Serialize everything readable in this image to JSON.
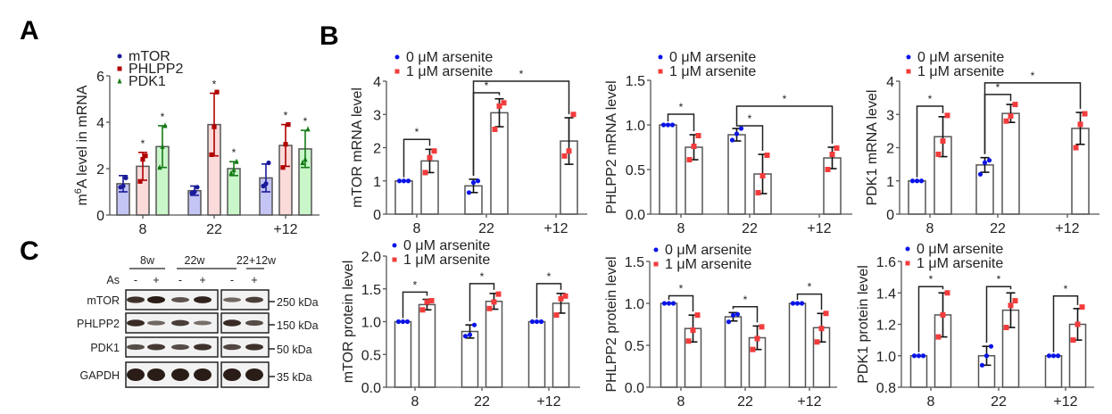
{
  "panels": {
    "A": "A",
    "B": "B",
    "C": "C"
  },
  "chart_data": [
    {
      "id": "A",
      "type": "bar",
      "title": "",
      "xlabel": "",
      "ylabel": "m6A level in mRNA",
      "ylabel_parts": {
        "pre": "m",
        "sup": "6",
        "post": "A level in mRNA"
      },
      "ylim": [
        0,
        6
      ],
      "yticks": [
        0,
        2,
        4,
        6
      ],
      "categories": [
        "8",
        "22",
        "+12"
      ],
      "legend_position": "top-left",
      "series": [
        {
          "name": "mTOR",
          "color": "#1a1a9a",
          "fill": "#c4c4f5",
          "marker": "circle",
          "values": [
            1.35,
            1.05,
            1.6
          ],
          "sd": [
            0.35,
            0.2,
            0.6
          ],
          "points": [
            [
              1.2,
              1.25,
              1.6
            ],
            [
              0.95,
              1.0,
              1.2
            ],
            [
              1.25,
              1.35,
              2.25
            ]
          ],
          "significant": [
            false,
            false,
            false
          ]
        },
        {
          "name": "PHLPP2",
          "color": "#b00000",
          "fill": "#fbdada",
          "marker": "square",
          "values": [
            2.1,
            3.9,
            3.0
          ],
          "sd": [
            0.6,
            1.35,
            0.9
          ],
          "points": [
            [
              1.45,
              2.4,
              2.55
            ],
            [
              2.6,
              3.8,
              5.3
            ],
            [
              2.05,
              3.05,
              3.9
            ]
          ],
          "significant": [
            true,
            true,
            true
          ]
        },
        {
          "name": "PDK1",
          "color": "#167a16",
          "fill": "#caf7ca",
          "marker": "triangle",
          "values": [
            2.95,
            2.0,
            2.85
          ],
          "sd": [
            0.9,
            0.3,
            0.8
          ],
          "points": [
            [
              2.05,
              2.95,
              3.85
            ],
            [
              1.8,
              1.95,
              2.3
            ],
            [
              2.25,
              2.4,
              3.7
            ]
          ],
          "significant": [
            true,
            true,
            true
          ]
        }
      ]
    },
    {
      "id": "B1",
      "type": "bar",
      "ylabel": "mTOR mRNA level",
      "ylim": [
        0,
        4
      ],
      "yticks": [
        "0",
        "1",
        "2",
        "3",
        "4"
      ],
      "ytick_values": [
        0,
        1,
        2,
        3,
        4
      ],
      "categories": [
        "8",
        "22",
        "+12"
      ],
      "legend_position": "top-left",
      "series": [
        {
          "name": "0 μM arsenite",
          "color": "#0a14e6",
          "values": [
            1.0,
            0.85,
            null
          ],
          "sd": [
            0,
            0.2,
            null
          ],
          "points": [
            [
              1.0,
              1.0,
              1.0
            ],
            [
              0.65,
              0.95,
              1.0
            ],
            null
          ]
        },
        {
          "name": "1 μM arsenite",
          "color": "#f23b3b",
          "values": [
            1.6,
            3.05,
            2.2
          ],
          "sd": [
            0.35,
            0.42,
            0.7
          ],
          "points": [
            [
              1.25,
              1.7,
              1.9
            ],
            [
              2.55,
              3.25,
              3.35
            ],
            [
              1.75,
              1.9,
              3.0
            ]
          ]
        }
      ],
      "brackets": [
        {
          "from": [
            0,
            0
          ],
          "to": [
            0,
            1
          ],
          "label": "*",
          "level": 2.25
        },
        {
          "from": [
            1,
            0
          ],
          "to": [
            1,
            1
          ],
          "label": "*",
          "level": 3.65
        },
        {
          "from": [
            1,
            0
          ],
          "to": [
            2,
            1
          ],
          "label": "*",
          "level": 4.0
        }
      ]
    },
    {
      "id": "B2",
      "type": "bar",
      "ylabel": "PHLPP2 mRNA level",
      "ylim": [
        0,
        1.5
      ],
      "yticks": [
        "0.0",
        "0.5",
        "1.0",
        "1.5"
      ],
      "ytick_values": [
        0,
        0.5,
        1.0,
        1.5
      ],
      "categories": [
        "8",
        "22",
        "+12"
      ],
      "legend_position": "top-left",
      "series": [
        {
          "name": "0 μM arsenite",
          "color": "#0a14e6",
          "values": [
            1.0,
            0.89,
            null
          ],
          "sd": [
            0,
            0.07,
            null
          ],
          "points": [
            [
              1.0,
              1.0,
              1.0
            ],
            [
              0.83,
              0.9,
              0.96
            ],
            null
          ]
        },
        {
          "name": "1 μM arsenite",
          "color": "#f23b3b",
          "values": [
            0.75,
            0.45,
            0.63
          ],
          "sd": [
            0.14,
            0.22,
            0.12
          ],
          "points": [
            [
              0.61,
              0.76,
              0.88
            ],
            [
              0.24,
              0.43,
              0.66
            ],
            [
              0.5,
              0.67,
              0.74
            ]
          ]
        }
      ],
      "brackets": [
        {
          "from": [
            0,
            0
          ],
          "to": [
            0,
            1
          ],
          "label": "*",
          "level": 1.12
        },
        {
          "from": [
            1,
            0
          ],
          "to": [
            1,
            1
          ],
          "label": "*",
          "level": 0.99
        },
        {
          "from": [
            1,
            0
          ],
          "to": [
            2,
            1
          ],
          "label": "*",
          "level": 1.21
        }
      ]
    },
    {
      "id": "B3",
      "type": "bar",
      "ylabel": "PDK1 mRNA level",
      "ylim": [
        0,
        4
      ],
      "yticks": [
        "0",
        "1",
        "2",
        "3",
        "4"
      ],
      "ytick_values": [
        0,
        1,
        2,
        3,
        4
      ],
      "categories": [
        "8",
        "22",
        "+12"
      ],
      "legend_position": "top-left",
      "series": [
        {
          "name": "0 μM arsenite",
          "color": "#0a14e6",
          "values": [
            1.0,
            1.48,
            null
          ],
          "sd": [
            0,
            0.22,
            null
          ],
          "points": [
            [
              1.0,
              1.0,
              1.0
            ],
            [
              1.2,
              1.55,
              1.62
            ],
            null
          ]
        },
        {
          "name": "1 μM arsenite",
          "color": "#f23b3b",
          "values": [
            2.33,
            3.03,
            2.58
          ],
          "sd": [
            0.6,
            0.27,
            0.48
          ],
          "points": [
            [
              1.8,
              2.2,
              2.97
            ],
            [
              2.8,
              2.95,
              3.3
            ],
            [
              2.0,
              2.7,
              3.02
            ]
          ]
        }
      ],
      "brackets": [
        {
          "from": [
            0,
            0
          ],
          "to": [
            0,
            1
          ],
          "label": "*",
          "level": 3.25
        },
        {
          "from": [
            1,
            0
          ],
          "to": [
            1,
            1
          ],
          "label": "*",
          "level": 3.6
        },
        {
          "from": [
            1,
            0
          ],
          "to": [
            2,
            1
          ],
          "label": "*",
          "level": 3.95
        }
      ]
    },
    {
      "id": "B4",
      "type": "bar",
      "ylabel": "mTOR protein level",
      "ylim": [
        0,
        2.0
      ],
      "yticks": [
        "0.0",
        "0.5",
        "1.0",
        "1.5",
        "2.0"
      ],
      "ytick_values": [
        0,
        0.5,
        1.0,
        1.5,
        2.0
      ],
      "categories": [
        "8",
        "22",
        "+12"
      ],
      "legend_position": "top-left",
      "series": [
        {
          "name": "0 μM arsenite",
          "color": "#0a14e6",
          "values": [
            1.0,
            0.85,
            1.0
          ],
          "sd": [
            0,
            0.1,
            0
          ],
          "points": [
            [
              1.0,
              1.0,
              1.0
            ],
            [
              0.78,
              0.8,
              0.95
            ],
            [
              1.0,
              1.0,
              1.0
            ]
          ]
        },
        {
          "name": "1 μM arsenite",
          "color": "#f23b3b",
          "values": [
            1.26,
            1.31,
            1.28
          ],
          "sd": [
            0.08,
            0.12,
            0.15
          ],
          "points": [
            [
              1.18,
              1.3,
              1.32
            ],
            [
              1.2,
              1.3,
              1.42
            ],
            [
              1.1,
              1.35,
              1.39
            ]
          ]
        }
      ],
      "brackets": [
        {
          "from": [
            0,
            0
          ],
          "to": [
            0,
            1
          ],
          "label": "*",
          "level": 1.45
        },
        {
          "from": [
            1,
            0
          ],
          "to": [
            1,
            1
          ],
          "label": "*",
          "level": 1.58
        },
        {
          "from": [
            2,
            0
          ],
          "to": [
            2,
            1
          ],
          "label": "*",
          "level": 1.58
        }
      ]
    },
    {
      "id": "B5",
      "type": "bar",
      "ylabel": "PHLPP2 protein level",
      "ylim": [
        0,
        1.5
      ],
      "yticks": [
        "0.0",
        "0.5",
        "1.0",
        "1.5"
      ],
      "ytick_values": [
        0,
        0.5,
        1.0,
        1.5
      ],
      "categories": [
        "8",
        "22",
        "+12"
      ],
      "legend_position": "top-left",
      "series": [
        {
          "name": "0 μM arsenite",
          "color": "#0a14e6",
          "values": [
            1.0,
            0.84,
            1.0
          ],
          "sd": [
            0,
            0.05,
            0
          ],
          "points": [
            [
              1.0,
              1.0,
              1.0
            ],
            [
              0.78,
              0.86,
              0.87
            ],
            [
              1.0,
              1.0,
              1.0
            ]
          ]
        },
        {
          "name": "1 μM arsenite",
          "color": "#f23b3b",
          "values": [
            0.7,
            0.59,
            0.71
          ],
          "sd": [
            0.16,
            0.14,
            0.17
          ],
          "points": [
            [
              0.55,
              0.68,
              0.86
            ],
            [
              0.45,
              0.58,
              0.72
            ],
            [
              0.54,
              0.7,
              0.88
            ]
          ]
        }
      ],
      "brackets": [
        {
          "from": [
            0,
            0
          ],
          "to": [
            0,
            1
          ],
          "label": "*",
          "level": 1.09
        },
        {
          "from": [
            1,
            0
          ],
          "to": [
            1,
            1
          ],
          "label": "*",
          "level": 0.96
        },
        {
          "from": [
            2,
            0
          ],
          "to": [
            2,
            1
          ],
          "label": "*",
          "level": 1.11
        }
      ]
    },
    {
      "id": "B6",
      "type": "bar",
      "ylabel": "PDK1 protein level",
      "ylim": [
        0.8,
        1.6
      ],
      "yticks": [
        "0.8",
        "1.0",
        "1.2",
        "1.4",
        "1.6"
      ],
      "ytick_values": [
        0.8,
        1.0,
        1.2,
        1.4,
        1.6
      ],
      "categories": [
        "8",
        "22",
        "+12"
      ],
      "legend_position": "top-left",
      "series": [
        {
          "name": "0 μM arsenite",
          "color": "#0a14e6",
          "values": [
            1.0,
            1.0,
            1.0
          ],
          "sd": [
            0,
            0.06,
            0
          ],
          "points": [
            [
              1.0,
              1.0,
              1.0
            ],
            [
              0.94,
              1.0,
              1.06
            ],
            [
              1.0,
              1.0,
              1.0
            ]
          ]
        },
        {
          "name": "1 μM arsenite",
          "color": "#f23b3b",
          "values": [
            1.26,
            1.29,
            1.2
          ],
          "sd": [
            0.14,
            0.11,
            0.1
          ],
          "points": [
            [
              1.12,
              1.26,
              1.4
            ],
            [
              1.18,
              1.32,
              1.35
            ],
            [
              1.1,
              1.2,
              1.31
            ]
          ]
        }
      ],
      "brackets": [
        {
          "from": [
            0,
            0
          ],
          "to": [
            0,
            1
          ],
          "label": "*",
          "level": 1.44
        },
        {
          "from": [
            1,
            0
          ],
          "to": [
            1,
            1
          ],
          "label": "*",
          "level": 1.44
        },
        {
          "from": [
            2,
            0
          ],
          "to": [
            2,
            1
          ],
          "label": "*",
          "level": 1.38
        }
      ]
    }
  ],
  "western_blot": {
    "groups": [
      "8w",
      "22w",
      "22+12w"
    ],
    "treatment_label": "As",
    "lanes": [
      "-",
      "+",
      "-",
      "+",
      "-",
      "+"
    ],
    "rows": [
      {
        "protein": "mTOR",
        "marker": "250 kDa",
        "intensity": [
          0.85,
          1.0,
          0.6,
          0.95,
          0.45,
          0.75
        ]
      },
      {
        "protein": "PHLPP2",
        "marker": "150 kDa",
        "intensity": [
          0.9,
          0.45,
          0.75,
          0.4,
          0.9,
          0.65
        ]
      },
      {
        "protein": "PDK1",
        "marker": "50 kDa",
        "intensity": [
          0.65,
          0.8,
          0.65,
          0.85,
          0.7,
          0.85
        ]
      },
      {
        "protein": "GAPDH",
        "marker": "35 kDa",
        "intensity": [
          1.0,
          1.0,
          1.0,
          1.0,
          1.0,
          1.0
        ]
      }
    ]
  }
}
